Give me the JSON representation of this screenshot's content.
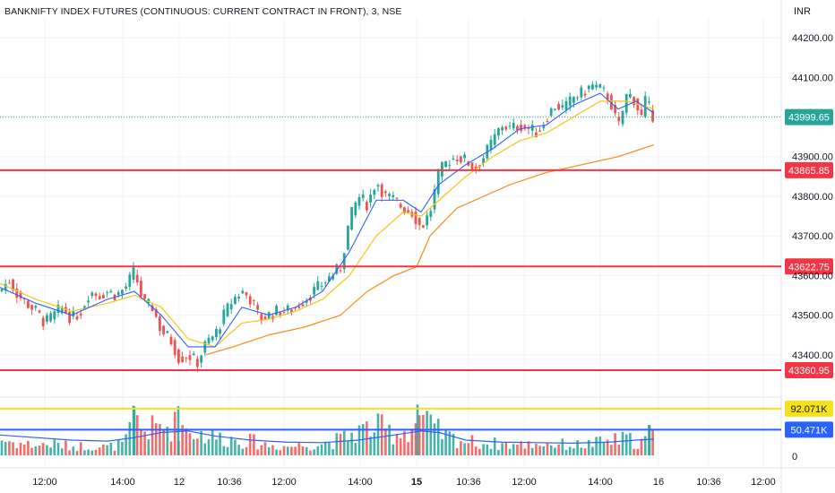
{
  "header": {
    "title": "BANKNIFTY INDEX FUTURES (CONTINUOUS: CURRENT CONTRACT IN FRONT), 3, NSE",
    "currency": "INR"
  },
  "colors": {
    "up": "#26a69a",
    "down": "#ef5350",
    "sma_fast": "#2962ff",
    "sma_mid": "#f5c518",
    "sma_slow": "#f59323",
    "hline": "#f23645",
    "vol_high": "#f5e21b",
    "vol_avg": "#2962ff",
    "last_price": "#26a69a"
  },
  "chart_data": {
    "type": "candlestick",
    "y_axis": {
      "ticks": [
        "44200.00",
        "44100.00",
        "43900.00",
        "43800.00",
        "43700.00",
        "43600.00",
        "43500.00",
        "43400.00"
      ],
      "ylim": [
        43300,
        44250
      ]
    },
    "x_axis": {
      "ticks": [
        "12:00",
        "14:00",
        "12",
        "10:36",
        "12:00",
        "14:00",
        "15",
        "10:36",
        "12:00",
        "14:00",
        "16",
        "10:36",
        "12:00"
      ],
      "bold_ticks": [
        "15"
      ]
    },
    "last_price": "43999.65",
    "last_price_value": 43999.65,
    "horizontal_lines": [
      {
        "label": "43865.85",
        "value": 43865.85
      },
      {
        "label": "43622.75",
        "value": 43622.75
      },
      {
        "label": "43360.95",
        "value": 43360.95
      }
    ],
    "price_path": [
      [
        0,
        43560
      ],
      [
        10,
        43590
      ],
      [
        20,
        43550
      ],
      [
        30,
        43530
      ],
      [
        40,
        43510
      ],
      [
        50,
        43480
      ],
      [
        60,
        43500
      ],
      [
        70,
        43520
      ],
      [
        80,
        43490
      ],
      [
        90,
        43510
      ],
      [
        100,
        43560
      ],
      [
        110,
        43550
      ],
      [
        120,
        43560
      ],
      [
        130,
        43550
      ],
      [
        140,
        43570
      ],
      [
        150,
        43610
      ],
      [
        160,
        43530
      ],
      [
        170,
        43520
      ],
      [
        180,
        43460
      ],
      [
        190,
        43440
      ],
      [
        200,
        43390
      ],
      [
        210,
        43400
      ],
      [
        220,
        43380
      ],
      [
        230,
        43430
      ],
      [
        240,
        43450
      ],
      [
        250,
        43500
      ],
      [
        260,
        43540
      ],
      [
        270,
        43560
      ],
      [
        280,
        43540
      ],
      [
        290,
        43490
      ],
      [
        300,
        43500
      ],
      [
        310,
        43510
      ],
      [
        320,
        43510
      ],
      [
        330,
        43520
      ],
      [
        340,
        43540
      ],
      [
        350,
        43560
      ],
      [
        360,
        43580
      ],
      [
        370,
        43600
      ],
      [
        380,
        43620
      ],
      [
        390,
        43740
      ],
      [
        400,
        43800
      ],
      [
        410,
        43780
      ],
      [
        420,
        43840
      ],
      [
        430,
        43800
      ],
      [
        440,
        43790
      ],
      [
        450,
        43770
      ],
      [
        460,
        43760
      ],
      [
        465,
        43740
      ],
      [
        470,
        43720
      ],
      [
        480,
        43760
      ],
      [
        490,
        43860
      ],
      [
        500,
        43890
      ],
      [
        510,
        43900
      ],
      [
        520,
        43890
      ],
      [
        530,
        43870
      ],
      [
        540,
        43900
      ],
      [
        550,
        43940
      ],
      [
        560,
        43980
      ],
      [
        570,
        43970
      ],
      [
        580,
        43980
      ],
      [
        590,
        43970
      ],
      [
        600,
        43960
      ],
      [
        610,
        44000
      ],
      [
        620,
        44030
      ],
      [
        630,
        44020
      ],
      [
        640,
        44050
      ],
      [
        650,
        44060
      ],
      [
        660,
        44080
      ],
      [
        670,
        44070
      ],
      [
        680,
        44050
      ],
      [
        690,
        43970
      ],
      [
        700,
        44060
      ],
      [
        710,
        44040
      ],
      [
        715,
        43990
      ],
      [
        720,
        44040
      ],
      [
        730,
        43999
      ]
    ],
    "sma_fast_path": [
      [
        0,
        43570
      ],
      [
        40,
        43530
      ],
      [
        80,
        43500
      ],
      [
        120,
        43540
      ],
      [
        150,
        43560
      ],
      [
        180,
        43500
      ],
      [
        210,
        43420
      ],
      [
        240,
        43420
      ],
      [
        270,
        43520
      ],
      [
        300,
        43500
      ],
      [
        330,
        43520
      ],
      [
        360,
        43560
      ],
      [
        390,
        43660
      ],
      [
        420,
        43790
      ],
      [
        450,
        43790
      ],
      [
        470,
        43760
      ],
      [
        490,
        43830
      ],
      [
        520,
        43880
      ],
      [
        550,
        43920
      ],
      [
        580,
        43970
      ],
      [
        610,
        43980
      ],
      [
        640,
        44030
      ],
      [
        670,
        44060
      ],
      [
        690,
        44020
      ],
      [
        710,
        44040
      ],
      [
        730,
        44010
      ]
    ],
    "sma_mid_path": [
      [
        0,
        43580
      ],
      [
        40,
        43540
      ],
      [
        80,
        43510
      ],
      [
        120,
        43530
      ],
      [
        150,
        43550
      ],
      [
        180,
        43520
      ],
      [
        210,
        43440
      ],
      [
        240,
        43420
      ],
      [
        270,
        43480
      ],
      [
        300,
        43490
      ],
      [
        330,
        43510
      ],
      [
        360,
        43540
      ],
      [
        390,
        43600
      ],
      [
        420,
        43700
      ],
      [
        450,
        43760
      ],
      [
        470,
        43750
      ],
      [
        490,
        43790
      ],
      [
        520,
        43850
      ],
      [
        550,
        43900
      ],
      [
        580,
        43940
      ],
      [
        610,
        43960
      ],
      [
        640,
        44000
      ],
      [
        670,
        44040
      ],
      [
        700,
        44040
      ],
      [
        730,
        44020
      ]
    ],
    "sma_slow_path": [
      [
        230,
        43400
      ],
      [
        260,
        43420
      ],
      [
        300,
        43450
      ],
      [
        340,
        43470
      ],
      [
        380,
        43500
      ],
      [
        410,
        43560
      ],
      [
        440,
        43600
      ],
      [
        465,
        43622
      ],
      [
        480,
        43700
      ],
      [
        510,
        43770
      ],
      [
        540,
        43800
      ],
      [
        570,
        43830
      ],
      [
        610,
        43860
      ],
      [
        650,
        43880
      ],
      [
        690,
        43900
      ],
      [
        730,
        43930
      ]
    ],
    "volume_axis": {
      "ticks": [
        "92.071K",
        "50.471K",
        "0"
      ],
      "max_k": 120
    },
    "volume_lines": [
      {
        "label": "92.071K",
        "value_k": 92.071
      },
      {
        "label": "50.471K",
        "value_k": 50.471
      }
    ],
    "volume_path_k": [
      [
        0,
        40
      ],
      [
        20,
        30
      ],
      [
        40,
        25
      ],
      [
        60,
        28
      ],
      [
        80,
        22
      ],
      [
        100,
        24
      ],
      [
        120,
        20
      ],
      [
        140,
        30
      ],
      [
        150,
        96
      ],
      [
        160,
        60
      ],
      [
        180,
        70
      ],
      [
        200,
        75
      ],
      [
        220,
        55
      ],
      [
        240,
        45
      ],
      [
        260,
        40
      ],
      [
        280,
        35
      ],
      [
        300,
        25
      ],
      [
        320,
        22
      ],
      [
        340,
        25
      ],
      [
        360,
        30
      ],
      [
        380,
        38
      ],
      [
        400,
        60
      ],
      [
        420,
        70
      ],
      [
        440,
        55
      ],
      [
        460,
        65
      ],
      [
        466,
        100
      ],
      [
        480,
        70
      ],
      [
        500,
        45
      ],
      [
        520,
        35
      ],
      [
        540,
        30
      ],
      [
        560,
        28
      ],
      [
        580,
        25
      ],
      [
        600,
        30
      ],
      [
        620,
        28
      ],
      [
        640,
        25
      ],
      [
        660,
        28
      ],
      [
        680,
        35
      ],
      [
        700,
        40
      ],
      [
        715,
        30
      ],
      [
        725,
        55
      ],
      [
        730,
        45
      ]
    ],
    "volume_avg_path_k": [
      [
        0,
        40
      ],
      [
        40,
        35
      ],
      [
        80,
        30
      ],
      [
        120,
        28
      ],
      [
        150,
        35
      ],
      [
        180,
        45
      ],
      [
        210,
        48
      ],
      [
        240,
        38
      ],
      [
        280,
        30
      ],
      [
        320,
        26
      ],
      [
        360,
        25
      ],
      [
        400,
        30
      ],
      [
        440,
        40
      ],
      [
        470,
        48
      ],
      [
        490,
        45
      ],
      [
        520,
        30
      ],
      [
        560,
        26
      ],
      [
        600,
        25
      ],
      [
        640,
        24
      ],
      [
        680,
        26
      ],
      [
        710,
        30
      ],
      [
        730,
        32
      ]
    ]
  }
}
